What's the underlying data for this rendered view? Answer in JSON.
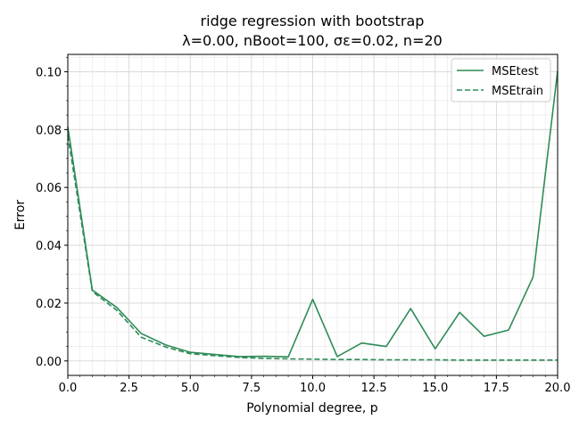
{
  "chart_data": {
    "type": "line",
    "title": "ridge regression with bootstrap",
    "subtitle": "λ=0.00,  nBoot=100,  σε=0.02,  n=20",
    "xlabel": "Polynomial degree, p",
    "ylabel": "Error",
    "xlim": [
      0,
      20
    ],
    "ylim": [
      -0.005,
      0.106
    ],
    "x_ticks": [
      "0.0",
      "2.5",
      "5.0",
      "7.5",
      "10.0",
      "12.5",
      "15.0",
      "17.5",
      "20.0"
    ],
    "x_tick_values": [
      0,
      2.5,
      5,
      7.5,
      10,
      12.5,
      15,
      17.5,
      20
    ],
    "y_ticks": [
      "0.00",
      "0.02",
      "0.04",
      "0.06",
      "0.08",
      "0.10"
    ],
    "y_tick_values": [
      0,
      0.02,
      0.04,
      0.06,
      0.08,
      0.1
    ],
    "grid": true,
    "legend_position": "top-right",
    "x": [
      0,
      1,
      2,
      3,
      4,
      5,
      6,
      7,
      8,
      9,
      10,
      11,
      12,
      13,
      14,
      15,
      16,
      17,
      18,
      19,
      20
    ],
    "series": [
      {
        "name": "MSEtest",
        "style": "solid",
        "color": "#2e8b57",
        "values": [
          0.081,
          0.0245,
          0.0185,
          0.0095,
          0.0055,
          0.003,
          0.0022,
          0.0015,
          0.0016,
          0.0014,
          0.0213,
          0.0015,
          0.0062,
          0.005,
          0.0181,
          0.0042,
          0.0168,
          0.0085,
          0.0107,
          0.029,
          0.1003
        ]
      },
      {
        "name": "MSEtrain",
        "style": "dashed",
        "color": "#2e8b57",
        "values": [
          0.078,
          0.024,
          0.0175,
          0.0082,
          0.0048,
          0.0025,
          0.0018,
          0.0012,
          0.0009,
          0.0007,
          0.0006,
          0.0005,
          0.0005,
          0.0004,
          0.0004,
          0.0004,
          0.0003,
          0.0003,
          0.0003,
          0.0003,
          0.0003
        ]
      }
    ]
  }
}
